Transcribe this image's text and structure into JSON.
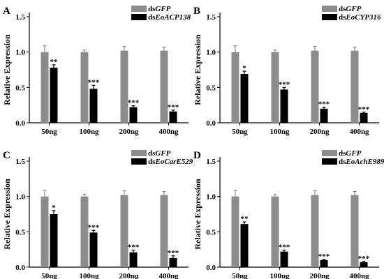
{
  "chart_data": [
    {
      "type": "bar",
      "panel": "A",
      "categories": [
        "50ng",
        "100ng",
        "200ng",
        "400ng"
      ],
      "ylabel": "Relative Expression",
      "ylim": [
        0,
        1.5
      ],
      "yticks": [
        "0.0",
        "0.5",
        "1.0",
        "1.5"
      ],
      "series": [
        {
          "legend_prefix": "ds",
          "legend_gene": "GFP",
          "color": "#8c8c8c",
          "values": [
            1.0,
            1.0,
            1.02,
            1.02
          ],
          "errors": [
            0.09,
            0.03,
            0.06,
            0.05
          ],
          "sig": [
            "",
            "",
            "",
            ""
          ]
        },
        {
          "legend_prefix": "ds",
          "legend_gene": "EoACP138",
          "color": "#000000",
          "values": [
            0.78,
            0.48,
            0.22,
            0.16
          ],
          "errors": [
            0.04,
            0.05,
            0.02,
            0.02
          ],
          "sig": [
            "**",
            "***",
            "***",
            "***"
          ]
        }
      ]
    },
    {
      "type": "bar",
      "panel": "B",
      "categories": [
        "50ng",
        "100ng",
        "200ng",
        "400ng"
      ],
      "ylabel": "Relative Expression",
      "ylim": [
        0,
        1.5
      ],
      "yticks": [
        "0.0",
        "0.5",
        "1.0",
        "1.5"
      ],
      "series": [
        {
          "legend_prefix": "ds",
          "legend_gene": "GFP",
          "color": "#8c8c8c",
          "values": [
            1.0,
            1.0,
            1.02,
            1.02
          ],
          "errors": [
            0.09,
            0.03,
            0.06,
            0.05
          ],
          "sig": [
            "",
            "",
            "",
            ""
          ]
        },
        {
          "legend_prefix": "ds",
          "legend_gene": "EoCYP316",
          "color": "#000000",
          "values": [
            0.69,
            0.47,
            0.2,
            0.14
          ],
          "errors": [
            0.04,
            0.03,
            0.02,
            0.01
          ],
          "sig": [
            "*",
            "***",
            "***",
            "***"
          ]
        }
      ]
    },
    {
      "type": "bar",
      "panel": "C",
      "categories": [
        "50ng",
        "100ng",
        "200ng",
        "400ng"
      ],
      "ylabel": "Relative Expression",
      "ylim": [
        0,
        1.5
      ],
      "yticks": [
        "0.0",
        "0.5",
        "1.0",
        "1.5"
      ],
      "series": [
        {
          "legend_prefix": "ds",
          "legend_gene": "GFP",
          "color": "#8c8c8c",
          "values": [
            1.0,
            1.0,
            1.02,
            1.02
          ],
          "errors": [
            0.09,
            0.03,
            0.06,
            0.05
          ],
          "sig": [
            "",
            "",
            "",
            ""
          ]
        },
        {
          "legend_prefix": "ds",
          "legend_gene": "EoCarE529",
          "color": "#000000",
          "values": [
            0.75,
            0.49,
            0.21,
            0.13
          ],
          "errors": [
            0.05,
            0.03,
            0.03,
            0.03
          ],
          "sig": [
            "*",
            "***",
            "***",
            "***"
          ]
        }
      ]
    },
    {
      "type": "bar",
      "panel": "D",
      "categories": [
        "50ng",
        "100ng",
        "200ng",
        "400ng"
      ],
      "ylabel": "Relative Expression",
      "ylim": [
        0,
        1.5
      ],
      "yticks": [
        "0.0",
        "0.5",
        "1.0",
        "1.5"
      ],
      "series": [
        {
          "legend_prefix": "ds",
          "legend_gene": "GFP",
          "color": "#8c8c8c",
          "values": [
            1.0,
            1.0,
            1.02,
            1.02
          ],
          "errors": [
            0.09,
            0.03,
            0.06,
            0.05
          ],
          "sig": [
            "",
            "",
            "",
            ""
          ]
        },
        {
          "legend_prefix": "ds",
          "legend_gene": "EoAchE989",
          "color": "#000000",
          "values": [
            0.61,
            0.22,
            0.1,
            0.07
          ],
          "errors": [
            0.03,
            0.02,
            0.01,
            0.01
          ],
          "sig": [
            "**",
            "***",
            "***",
            "***"
          ]
        }
      ]
    }
  ]
}
